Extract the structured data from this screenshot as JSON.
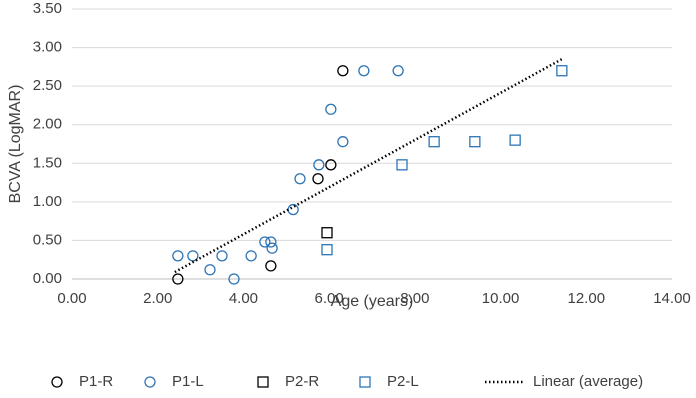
{
  "chart_data": {
    "type": "scatter",
    "x_label": "Age (years)",
    "y_label": "BCVA (LogMAR)",
    "xlim": [
      0,
      14
    ],
    "ylim": [
      0,
      3.5
    ],
    "xticks": [
      {
        "value": 0,
        "label": "0.00"
      },
      {
        "value": 2,
        "label": "2.00"
      },
      {
        "value": 4,
        "label": "4.00"
      },
      {
        "value": 6,
        "label": "6.00"
      },
      {
        "value": 8,
        "label": "8.00"
      },
      {
        "value": 10,
        "label": "10.00"
      },
      {
        "value": 12,
        "label": "12.00"
      },
      {
        "value": 14,
        "label": "14.00"
      }
    ],
    "yticks": [
      {
        "value": 0,
        "label": "0.00"
      },
      {
        "value": 0.5,
        "label": "0.50"
      },
      {
        "value": 1,
        "label": "1.00"
      },
      {
        "value": 1.5,
        "label": "1.50"
      },
      {
        "value": 2,
        "label": "2.00"
      },
      {
        "value": 2.5,
        "label": "2.50"
      },
      {
        "value": 3,
        "label": "3.00"
      },
      {
        "value": 3.5,
        "label": "3.50"
      }
    ],
    "grid": true,
    "legend": "bottom",
    "series": [
      {
        "name": "P1-R",
        "color": "#000000",
        "marker": "circle",
        "x": [
          2.47,
          4.64,
          5.74,
          6.04,
          6.32
        ],
        "values": [
          0.0,
          0.17,
          1.3,
          1.48,
          2.7
        ]
      },
      {
        "name": "P1-L",
        "color": "#2e75b6",
        "marker": "circle",
        "x": [
          2.47,
          2.82,
          3.22,
          3.5,
          3.78,
          4.18,
          4.5,
          4.64,
          4.67,
          5.16,
          5.32,
          5.76,
          6.04,
          6.32,
          6.81,
          7.61
        ],
        "values": [
          0.3,
          0.3,
          0.12,
          0.3,
          0.0,
          0.3,
          0.48,
          0.48,
          0.4,
          0.9,
          1.3,
          1.48,
          2.2,
          1.78,
          2.7,
          2.7
        ]
      },
      {
        "name": "P2-R",
        "color": "#000000",
        "marker": "square",
        "x": [
          5.95
        ],
        "values": [
          0.6
        ]
      },
      {
        "name": "P2-L",
        "color": "#2e75b6",
        "marker": "square",
        "x": [
          5.95,
          7.7,
          8.45,
          9.4,
          10.34,
          11.43
        ],
        "values": [
          0.38,
          1.48,
          1.78,
          1.78,
          1.8,
          2.7
        ]
      },
      {
        "name": "Linear (average)",
        "color": "#000000",
        "marker": "dotted-line",
        "x": [
          2.4,
          11.43
        ],
        "values": [
          0.09,
          2.85
        ]
      }
    ]
  }
}
